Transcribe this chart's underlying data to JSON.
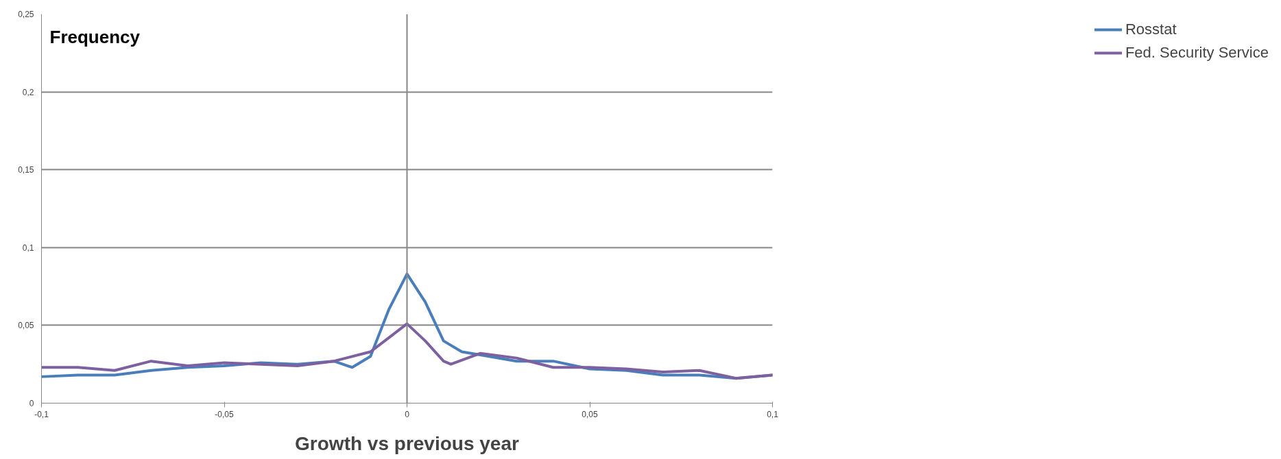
{
  "chart_data": {
    "type": "line",
    "xlabel": "Growth vs previous year",
    "ylabel": "Frequency",
    "xlim": [
      -0.1,
      0.1
    ],
    "ylim": [
      0,
      0.25
    ],
    "xticks": [
      {
        "value": -0.1,
        "label": "-0,1"
      },
      {
        "value": -0.05,
        "label": "-0,05"
      },
      0,
      {
        "value": 0.05,
        "label": "0,05"
      },
      {
        "value": 0.1,
        "label": "0,1"
      }
    ],
    "yticks": [
      0,
      {
        "value": 0.05,
        "label": "0,05"
      },
      {
        "value": 0.1,
        "label": "0,1"
      },
      {
        "value": 0.15,
        "label": "0,15"
      },
      {
        "value": 0.2,
        "label": "0,2"
      },
      {
        "value": 0.25,
        "label": "0,25"
      }
    ],
    "grid": "y",
    "legend": "right",
    "ref_lines": [
      {
        "axis": "x",
        "value": 0,
        "color": "#868686"
      }
    ],
    "series": [
      {
        "name": "Rosstat",
        "color": "#4a7ebb",
        "x": [
          -0.1,
          -0.09,
          -0.08,
          -0.07,
          -0.06,
          -0.05,
          -0.04,
          -0.03,
          -0.02,
          -0.015,
          -0.01,
          -0.005,
          0,
          0.005,
          0.01,
          0.015,
          0.02,
          0.03,
          0.04,
          0.05,
          0.06,
          0.07,
          0.08,
          0.09,
          0.1
        ],
        "values": [
          0.017,
          0.018,
          0.018,
          0.021,
          0.023,
          0.024,
          0.026,
          0.025,
          0.027,
          0.023,
          0.03,
          0.06,
          0.083,
          0.065,
          0.04,
          0.033,
          0.031,
          0.027,
          0.027,
          0.022,
          0.021,
          0.018,
          0.018,
          0.016,
          0.018
        ]
      },
      {
        "name": "Fed. Security Service",
        "color": "#7d60a0",
        "x": [
          -0.1,
          -0.09,
          -0.08,
          -0.07,
          -0.06,
          -0.05,
          -0.04,
          -0.03,
          -0.02,
          -0.01,
          -0.005,
          0,
          0.005,
          0.01,
          0.012,
          0.02,
          0.03,
          0.04,
          0.05,
          0.06,
          0.07,
          0.08,
          0.09,
          0.1
        ],
        "values": [
          0.023,
          0.023,
          0.021,
          0.027,
          0.024,
          0.026,
          0.025,
          0.024,
          0.027,
          0.033,
          0.042,
          0.051,
          0.04,
          0.027,
          0.025,
          0.032,
          0.029,
          0.023,
          0.023,
          0.022,
          0.02,
          0.021,
          0.016,
          0.018
        ]
      }
    ]
  }
}
